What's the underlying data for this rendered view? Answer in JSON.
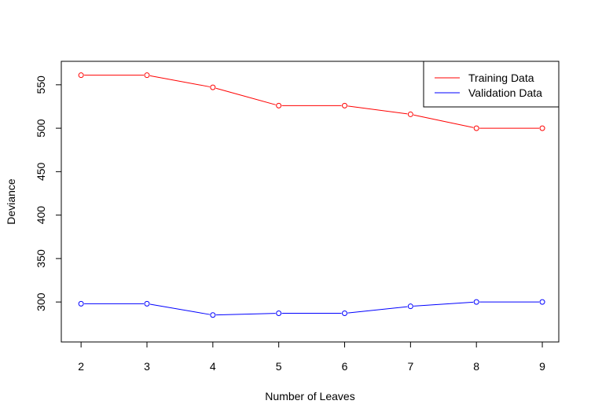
{
  "chart_data": {
    "type": "line",
    "title": "",
    "xlabel": "Number of Leaves",
    "ylabel": "Deviance",
    "x": [
      2,
      3,
      4,
      5,
      6,
      7,
      8,
      9
    ],
    "xticks": [
      "2",
      "3",
      "4",
      "5",
      "6",
      "7",
      "8",
      "9"
    ],
    "yticks": [
      "300",
      "350",
      "400",
      "450",
      "500",
      "550"
    ],
    "xlim": [
      1.7,
      9.25
    ],
    "ylim": [
      254,
      577
    ],
    "grid": false,
    "legend_position": "top-right",
    "series": [
      {
        "name": "Training Data",
        "color": "#ff0000",
        "values": [
          561,
          561,
          547,
          526,
          526,
          516,
          500,
          500
        ]
      },
      {
        "name": "Validation Data",
        "color": "#0000ff",
        "values": [
          298,
          298,
          285,
          287,
          287,
          295,
          300,
          300
        ]
      }
    ]
  }
}
